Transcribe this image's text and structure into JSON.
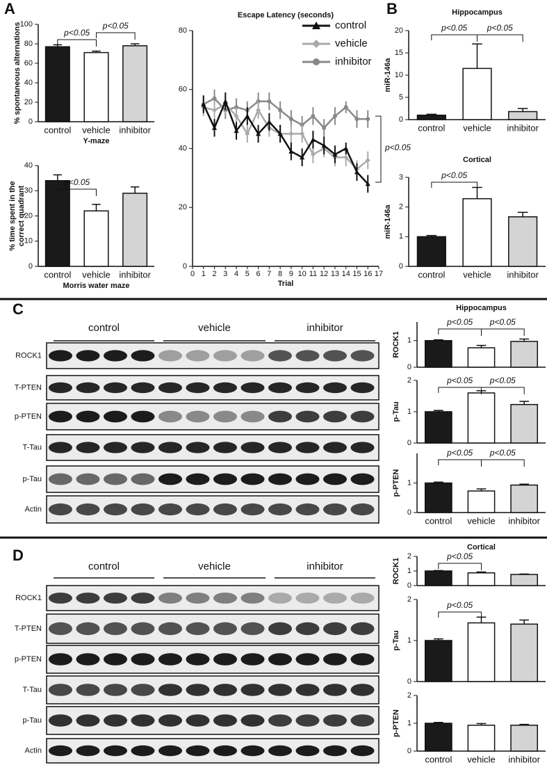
{
  "panel_labels": [
    "A",
    "B",
    "C",
    "D"
  ],
  "chart_data": [
    {
      "type": "bar",
      "ylabel": [
        "% spontaneous alternations"
      ],
      "xlabel": "Y-maze",
      "categories": [
        "control",
        "vehicle",
        "inhibitor"
      ],
      "values": [
        77,
        71,
        78
      ],
      "errors": [
        2,
        1.5,
        2
      ],
      "colors": [
        "#1a1a1a",
        "#ffffff",
        "#d4d4d4"
      ],
      "ylim": [
        0,
        100
      ],
      "yticks": [
        0,
        20,
        40,
        60,
        80,
        100
      ],
      "annotations": [
        "p<0.05",
        "p<0.05"
      ]
    },
    {
      "type": "bar",
      "ylabel": [
        "% time spent in the",
        "correct quadrant"
      ],
      "xlabel": "Morris water maze",
      "categories": [
        "control",
        "vehicle",
        "inhibitor"
      ],
      "values": [
        34,
        22,
        29
      ],
      "errors": [
        2.3,
        2.6,
        2.5
      ],
      "colors": [
        "#1a1a1a",
        "#ffffff",
        "#d4d4d4"
      ],
      "ylim": [
        0,
        40
      ],
      "yticks": [
        0,
        10,
        20,
        30,
        40
      ],
      "annotations": [
        "p<0.05"
      ]
    },
    {
      "type": "line",
      "title": "Escape Latency (seconds)",
      "xlabel": "Trial",
      "x": [
        1,
        2,
        3,
        4,
        5,
        6,
        7,
        8,
        9,
        10,
        11,
        12,
        13,
        14,
        15,
        16
      ],
      "xlim": [
        0,
        17
      ],
      "xticks": [
        0,
        1,
        2,
        3,
        4,
        5,
        6,
        7,
        8,
        9,
        10,
        11,
        12,
        13,
        14,
        15,
        16,
        17
      ],
      "ylim": [
        0,
        80
      ],
      "yticks": [
        0,
        20,
        40,
        60,
        80
      ],
      "series": [
        {
          "name": "control",
          "color": "#111111",
          "values": [
            55,
            47,
            56,
            46,
            51,
            45,
            49,
            45,
            39,
            37,
            43,
            41,
            38,
            40,
            32,
            28
          ],
          "errors": [
            3,
            3,
            3,
            3,
            3,
            3,
            3,
            3,
            3,
            3,
            3,
            3,
            3,
            2,
            3,
            3
          ]
        },
        {
          "name": "vehicle",
          "color": "#aaaaaa",
          "values": [
            54,
            53,
            55,
            51,
            45,
            53,
            47,
            45,
            45,
            45,
            38,
            40,
            37,
            37,
            33,
            36
          ],
          "errors": [
            3,
            3,
            3,
            3,
            3,
            3,
            3,
            3,
            3,
            3,
            3,
            3,
            3,
            3,
            3,
            3
          ]
        },
        {
          "name": "inhibitor",
          "color": "#888888",
          "values": [
            55,
            57,
            53,
            54,
            53,
            56,
            56,
            53,
            50,
            48,
            51,
            47,
            51,
            54,
            50,
            50
          ],
          "errors": [
            3,
            3,
            3,
            3,
            3,
            3,
            3,
            3,
            3,
            3,
            3,
            3,
            3,
            2,
            3,
            3
          ]
        }
      ],
      "annotations": [
        "p<0.05"
      ]
    },
    {
      "type": "bar",
      "title": "Hippocampus",
      "ylabel": [
        "miR-146a"
      ],
      "categories": [
        "control",
        "vehicle",
        "inhibitor"
      ],
      "values": [
        1,
        11.5,
        1.8
      ],
      "errors": [
        0.2,
        5.5,
        0.7
      ],
      "colors": [
        "#1a1a1a",
        "#ffffff",
        "#d4d4d4"
      ],
      "ylim": [
        0,
        20
      ],
      "yticks": [
        0,
        5,
        10,
        15,
        20
      ],
      "annotations": [
        "p<0.05",
        "p<0.05"
      ]
    },
    {
      "type": "bar",
      "title": "Cortical",
      "ylabel": [
        "miR-146a"
      ],
      "categories": [
        "control",
        "vehicle",
        "inhibitor"
      ],
      "values": [
        1,
        2.28,
        1.67
      ],
      "errors": [
        0.04,
        0.38,
        0.15
      ],
      "colors": [
        "#1a1a1a",
        "#ffffff",
        "#d4d4d4"
      ],
      "ylim": [
        0,
        3
      ],
      "yticks": [
        0,
        1,
        2,
        3
      ],
      "annotations": [
        "p<0.05"
      ]
    },
    {
      "type": "bar",
      "title": "Hippocampus",
      "ylabel": [
        "ROCK1"
      ],
      "values": [
        1,
        0.73,
        0.97
      ],
      "errors": [
        0.03,
        0.09,
        0.09
      ],
      "colors": [
        "#1a1a1a",
        "#ffffff",
        "#d4d4d4"
      ],
      "ylim": [
        0,
        1.7
      ],
      "yticks": [
        0,
        1
      ],
      "annotations": [
        "p<0.05",
        "p<0.05"
      ]
    },
    {
      "type": "bar",
      "ylabel": [
        "p-Tau"
      ],
      "values": [
        1,
        1.6,
        1.23
      ],
      "errors": [
        0.04,
        0.07,
        0.1
      ],
      "colors": [
        "#1a1a1a",
        "#ffffff",
        "#d4d4d4"
      ],
      "ylim": [
        0,
        2
      ],
      "yticks": [
        0,
        1,
        2
      ],
      "annotations": [
        "p<0.05",
        "p<0.05"
      ]
    },
    {
      "type": "bar",
      "ylabel": [
        "p-PTEN"
      ],
      "categories": [
        "control",
        "vehicle",
        "inhibitor"
      ],
      "values": [
        1,
        0.73,
        0.93
      ],
      "errors": [
        0.03,
        0.07,
        0.03
      ],
      "colors": [
        "#1a1a1a",
        "#ffffff",
        "#d4d4d4"
      ],
      "ylim": [
        0,
        2
      ],
      "yticks": [
        0,
        1
      ],
      "annotations": [
        "p<0.05",
        "p<0.05"
      ]
    },
    {
      "type": "bar",
      "title": "Cortical",
      "ylabel": [
        "ROCK1"
      ],
      "values": [
        1,
        0.87,
        0.76
      ],
      "errors": [
        0.03,
        0.06,
        0.03
      ],
      "colors": [
        "#1a1a1a",
        "#ffffff",
        "#d4d4d4"
      ],
      "ylim": [
        0,
        2
      ],
      "yticks": [
        0,
        1,
        2
      ],
      "annotations": [
        "p<0.05"
      ]
    },
    {
      "type": "bar",
      "ylabel": [
        "p-Tau"
      ],
      "values": [
        1,
        1.43,
        1.4
      ],
      "errors": [
        0.04,
        0.14,
        0.1
      ],
      "colors": [
        "#1a1a1a",
        "#ffffff",
        "#d4d4d4"
      ],
      "ylim": [
        0,
        2
      ],
      "yticks": [
        0,
        1,
        2
      ],
      "annotations": [
        "p<0.05"
      ]
    },
    {
      "type": "bar",
      "ylabel": [
        "p-PTEN"
      ],
      "categories": [
        "control",
        "vehicle",
        "inhibitor"
      ],
      "values": [
        1,
        0.93,
        0.93
      ],
      "errors": [
        0.03,
        0.06,
        0.03
      ],
      "colors": [
        "#1a1a1a",
        "#ffffff",
        "#d4d4d4"
      ],
      "ylim": [
        0,
        2
      ],
      "yticks": [
        0,
        1,
        2
      ]
    }
  ],
  "blots": [
    {
      "groups": [
        "control",
        "vehicle",
        "inhibitor"
      ],
      "rows": [
        "ROCK1",
        "T-PTEN",
        "p-PTEN",
        "T-Tau",
        "p-Tau",
        "Actin"
      ]
    },
    {
      "groups": [
        "control",
        "vehicle",
        "inhibitor"
      ],
      "rows": [
        "ROCK1",
        "T-PTEN",
        "p-PTEN",
        "T-Tau",
        "p-Tau",
        "Actin"
      ]
    }
  ]
}
